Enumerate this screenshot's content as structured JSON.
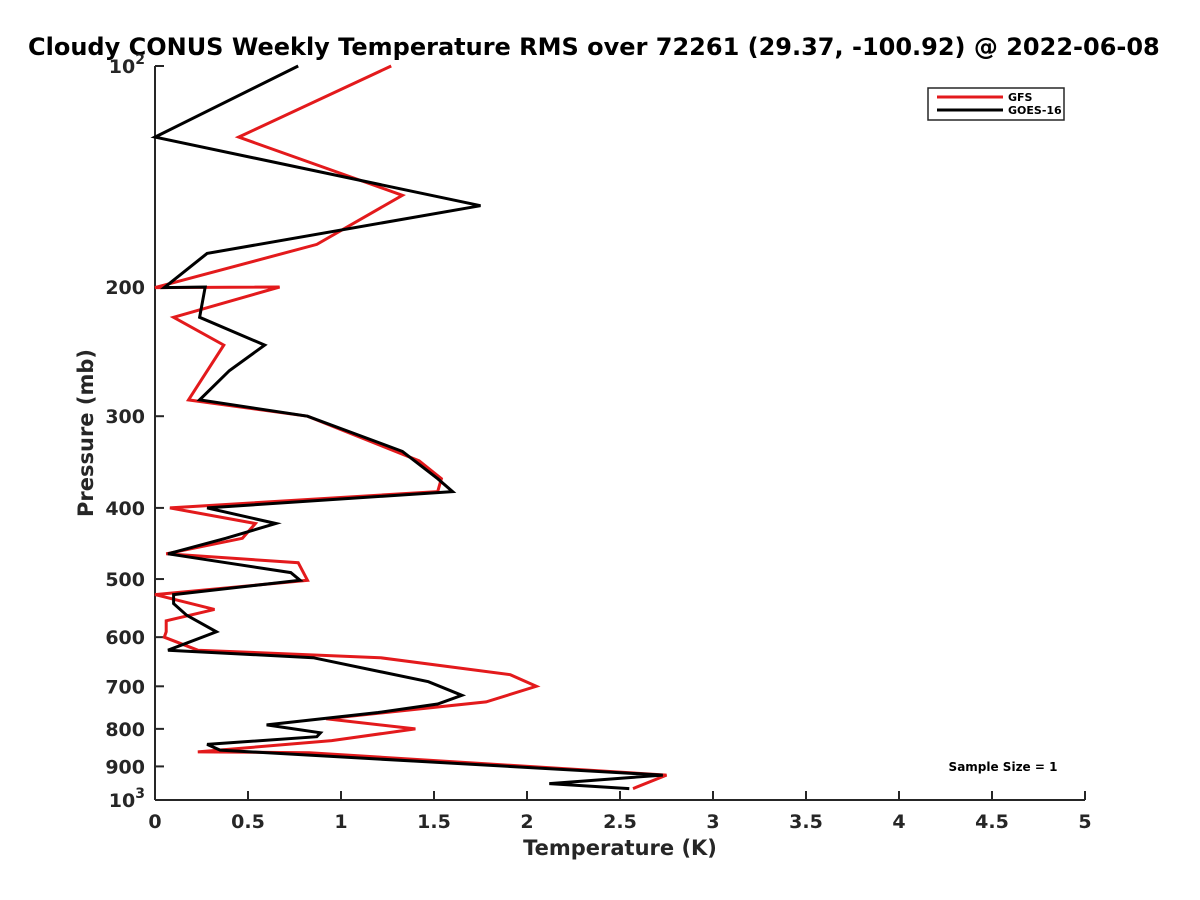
{
  "chart_data": {
    "type": "line",
    "title": "Cloudy CONUS Weekly Temperature RMS over 72261 (29.37, -100.92) @ 2022-06-08",
    "xlabel": "Temperature (K)",
    "ylabel": "Pressure (mb)",
    "xlim": [
      0,
      5
    ],
    "ylim": [
      100,
      1000
    ],
    "yscale": "log",
    "y_reversed": true,
    "grid": false,
    "legend_position": "top-right",
    "x_ticks": [
      {
        "value": 0,
        "label": "0"
      },
      {
        "value": 0.5,
        "label": "0.5"
      },
      {
        "value": 1,
        "label": "1"
      },
      {
        "value": 1.5,
        "label": "1.5"
      },
      {
        "value": 2,
        "label": "2"
      },
      {
        "value": 2.5,
        "label": "2.5"
      },
      {
        "value": 3,
        "label": "3"
      },
      {
        "value": 3.5,
        "label": "3.5"
      },
      {
        "value": 4,
        "label": "4"
      },
      {
        "value": 4.5,
        "label": "4.5"
      },
      {
        "value": 5,
        "label": "5"
      }
    ],
    "y_ticks": [
      {
        "value": 100,
        "base": "10",
        "exp": "2"
      },
      {
        "value": 200,
        "label": "200"
      },
      {
        "value": 300,
        "label": "300"
      },
      {
        "value": 400,
        "label": "400"
      },
      {
        "value": 500,
        "label": "500"
      },
      {
        "value": 600,
        "label": "600"
      },
      {
        "value": 700,
        "label": "700"
      },
      {
        "value": 800,
        "label": "800"
      },
      {
        "value": 900,
        "label": "900"
      },
      {
        "value": 1000,
        "base": "10",
        "exp": "3"
      }
    ],
    "annotation": "Sample Size = 1",
    "series": [
      {
        "name": "GFS",
        "color": "#e31a1c",
        "points": [
          [
            1.27,
            100
          ],
          [
            0.45,
            125
          ],
          [
            1.33,
            150
          ],
          [
            0.87,
            175
          ],
          [
            0.0,
            200.4
          ],
          [
            0.67,
            200
          ],
          [
            0.1,
            220
          ],
          [
            0.37,
            240
          ],
          [
            0.18,
            285
          ],
          [
            0.82,
            300
          ],
          [
            1.42,
            345
          ],
          [
            1.54,
            365
          ],
          [
            1.52,
            380
          ],
          [
            0.08,
            400
          ],
          [
            0.54,
            420
          ],
          [
            0.47,
            440
          ],
          [
            0.06,
            462
          ],
          [
            0.77,
            475
          ],
          [
            0.82,
            502
          ],
          [
            0.0,
            525
          ],
          [
            0.32,
            550
          ],
          [
            0.06,
            570
          ],
          [
            0.06,
            590
          ],
          [
            0.05,
            600
          ],
          [
            0.23,
            625
          ],
          [
            1.21,
            640
          ],
          [
            1.91,
            675
          ],
          [
            2.05,
            700
          ],
          [
            1.78,
            735
          ],
          [
            0.92,
            775
          ],
          [
            1.4,
            800
          ],
          [
            0.95,
            830
          ],
          [
            0.23,
            860
          ],
          [
            0.83,
            862
          ],
          [
            2.75,
            925
          ],
          [
            2.57,
            965
          ]
        ]
      },
      {
        "name": "GOES-16",
        "color": "#000000",
        "points": [
          [
            0.77,
            100
          ],
          [
            0.0,
            125
          ],
          [
            1.75,
            155
          ],
          [
            0.28,
            180
          ],
          [
            0.05,
            200.4
          ],
          [
            0.27,
            200
          ],
          [
            0.24,
            220
          ],
          [
            0.59,
            240
          ],
          [
            0.4,
            260
          ],
          [
            0.24,
            285
          ],
          [
            0.82,
            300
          ],
          [
            1.33,
            335
          ],
          [
            1.52,
            365
          ],
          [
            1.6,
            380
          ],
          [
            0.28,
            400
          ],
          [
            0.65,
            420
          ],
          [
            0.38,
            440
          ],
          [
            0.07,
            462
          ],
          [
            0.73,
            490
          ],
          [
            0.78,
            502
          ],
          [
            0.1,
            525
          ],
          [
            0.1,
            540
          ],
          [
            0.17,
            560
          ],
          [
            0.33,
            590
          ],
          [
            0.07,
            625
          ],
          [
            0.85,
            640
          ],
          [
            1.47,
            690
          ],
          [
            1.65,
            720
          ],
          [
            1.52,
            740
          ],
          [
            1.2,
            760
          ],
          [
            0.6,
            790
          ],
          [
            0.89,
            810
          ],
          [
            0.87,
            820
          ],
          [
            0.28,
            840
          ],
          [
            0.35,
            855
          ],
          [
            2.73,
            925
          ],
          [
            2.12,
            950
          ],
          [
            2.55,
            965
          ]
        ]
      }
    ]
  }
}
